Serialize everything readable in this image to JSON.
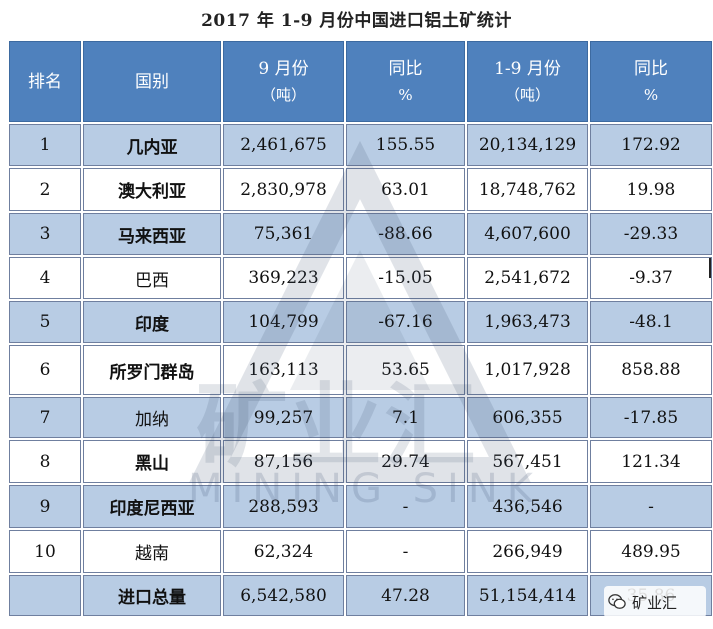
{
  "title": "2017 年 1-9 月份中国进口铝土矿统计",
  "headers": {
    "rank": "排名",
    "country": "国别",
    "sep_line1": "9 月份",
    "sep_line2": "（吨）",
    "yoy1_line1": "同比",
    "yoy1_line2": "%",
    "jan_sep_line1": "1-9 月份",
    "jan_sep_line2": "（吨）",
    "yoy2_line1": "同比",
    "yoy2_line2": "%"
  },
  "rows": [
    {
      "rank": "1",
      "country": "几内亚",
      "sep": "2,461,675",
      "yoy1": "155.55",
      "jan_sep": "20,134,129",
      "yoy2": "172.92"
    },
    {
      "rank": "2",
      "country": "澳大利亚",
      "sep": "2,830,978",
      "yoy1": "63.01",
      "jan_sep": "18,748,762",
      "yoy2": "19.98"
    },
    {
      "rank": "3",
      "country": "马来西亚",
      "sep": "75,361",
      "yoy1": "-88.66",
      "jan_sep": "4,607,600",
      "yoy2": "-29.33"
    },
    {
      "rank": "4",
      "country": "巴西",
      "sep": "369,223",
      "yoy1": "-15.05",
      "jan_sep": "2,541,672",
      "yoy2": "-9.37"
    },
    {
      "rank": "5",
      "country": "印度",
      "sep": "104,799",
      "yoy1": "-67.16",
      "jan_sep": "1,963,473",
      "yoy2": "-48.1"
    },
    {
      "rank": "6",
      "country": "所罗门群岛",
      "sep": "163,113",
      "yoy1": "53.65",
      "jan_sep": "1,017,928",
      "yoy2": "858.88"
    },
    {
      "rank": "7",
      "country": "加纳",
      "sep": "99,257",
      "yoy1": "7.1",
      "jan_sep": "606,355",
      "yoy2": "-17.85"
    },
    {
      "rank": "8",
      "country": "黑山",
      "sep": "87,156",
      "yoy1": "29.74",
      "jan_sep": "567,451",
      "yoy2": "121.34"
    },
    {
      "rank": "9",
      "country": "印度尼西亚",
      "sep": "288,593",
      "yoy1": "-",
      "jan_sep": "436,546",
      "yoy2": "-"
    },
    {
      "rank": "10",
      "country": "越南",
      "sep": "62,324",
      "yoy1": "-",
      "jan_sep": "266,949",
      "yoy2": "489.95"
    }
  ],
  "total": {
    "rank": "",
    "country": "进口总量",
    "sep": "6,542,580",
    "yoy1": "47.28",
    "jan_sep": "51,154,414",
    "yoy2": "35.86"
  },
  "watermark": {
    "han": "矿业汇",
    "latin": "MINING SINK"
  },
  "badge": {
    "label": "矿业汇",
    "icon": "wechat-icon"
  },
  "colors": {
    "header": "#4f81bd",
    "band": "#b8cce4"
  }
}
